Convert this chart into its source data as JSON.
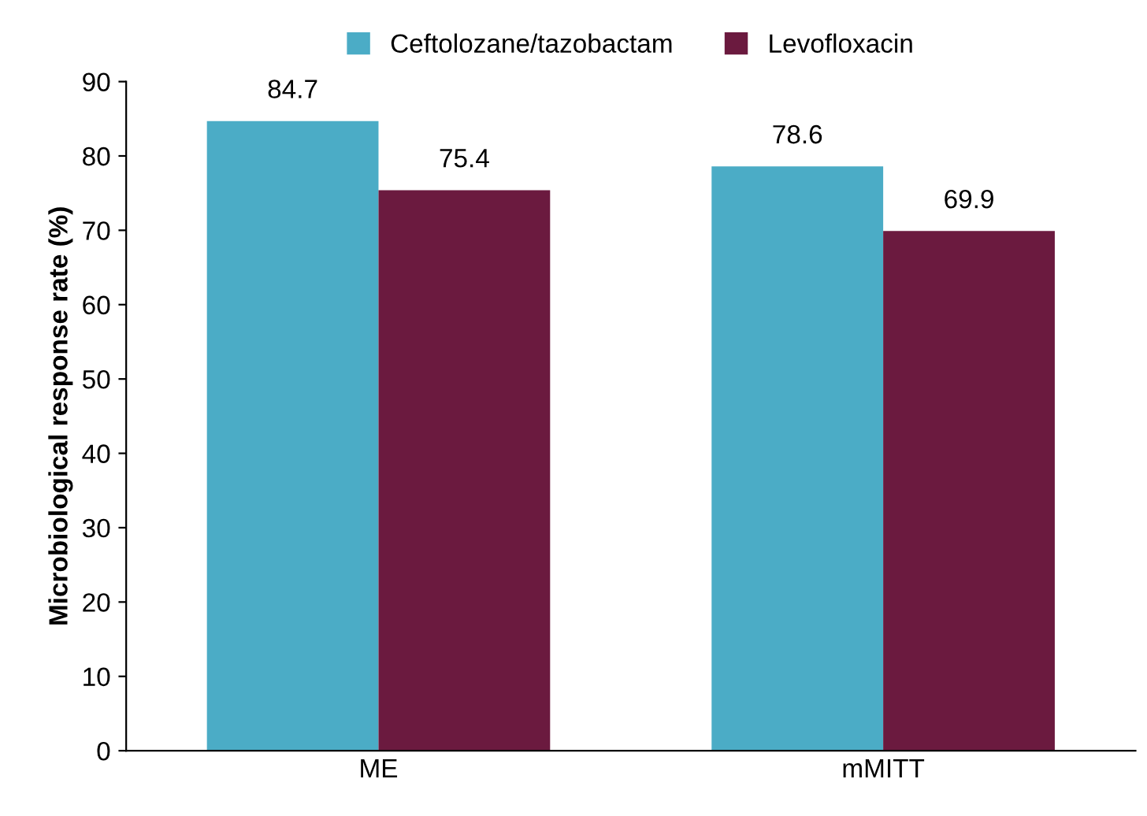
{
  "chart_data": {
    "type": "bar",
    "ylabel": "Microbiological response rate (%)",
    "categories": [
      "ME",
      "mMITT"
    ],
    "series": [
      {
        "name": "Ceftolozane/tazobactam",
        "color": "#4bacc6",
        "values": [
          84.7,
          78.6
        ]
      },
      {
        "name": "Levofloxacin",
        "color": "#6b1a3f",
        "values": [
          75.4,
          69.9
        ]
      }
    ],
    "ylim": [
      0,
      90
    ],
    "yticks": [
      0,
      10,
      20,
      30,
      40,
      50,
      60,
      70,
      80,
      90
    ],
    "data_labels": true,
    "grid": false,
    "legend": "top"
  }
}
